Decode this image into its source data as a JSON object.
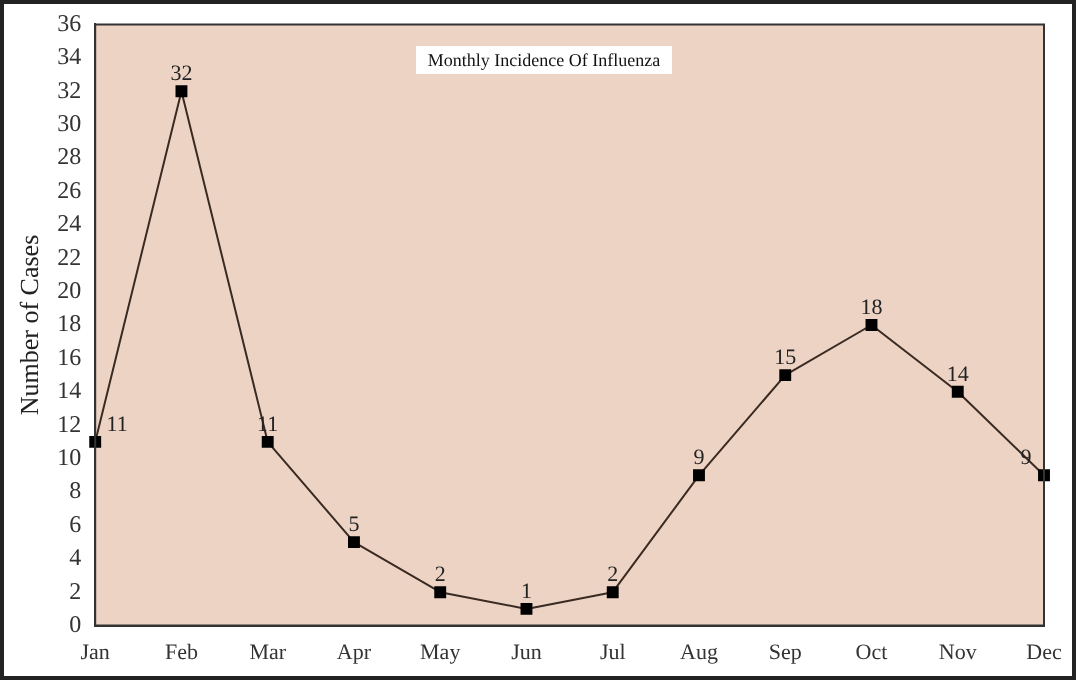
{
  "chart_data": {
    "type": "line",
    "title": "Monthly Incidence Of Influenza",
    "ylabel": "Number of Cases",
    "categories": [
      "Jan",
      "Feb",
      "Mar",
      "Apr",
      "May",
      "Jun",
      "Jul",
      "Aug",
      "Sep",
      "Oct",
      "Nov",
      "Dec"
    ],
    "series": [
      {
        "color": "#3a2a22",
        "values": [
          11,
          32,
          11,
          5,
          2,
          1,
          2,
          9,
          15,
          18,
          14,
          9
        ]
      }
    ],
    "ylim": [
      0,
      36
    ],
    "yticks": [
      0,
      2,
      4,
      6,
      8,
      10,
      12,
      14,
      16,
      18,
      20,
      22,
      24,
      26,
      28,
      30,
      32,
      34,
      36
    ],
    "data_labels": true,
    "marker": "square",
    "line_style": "solid",
    "grid": false,
    "legend": false
  }
}
